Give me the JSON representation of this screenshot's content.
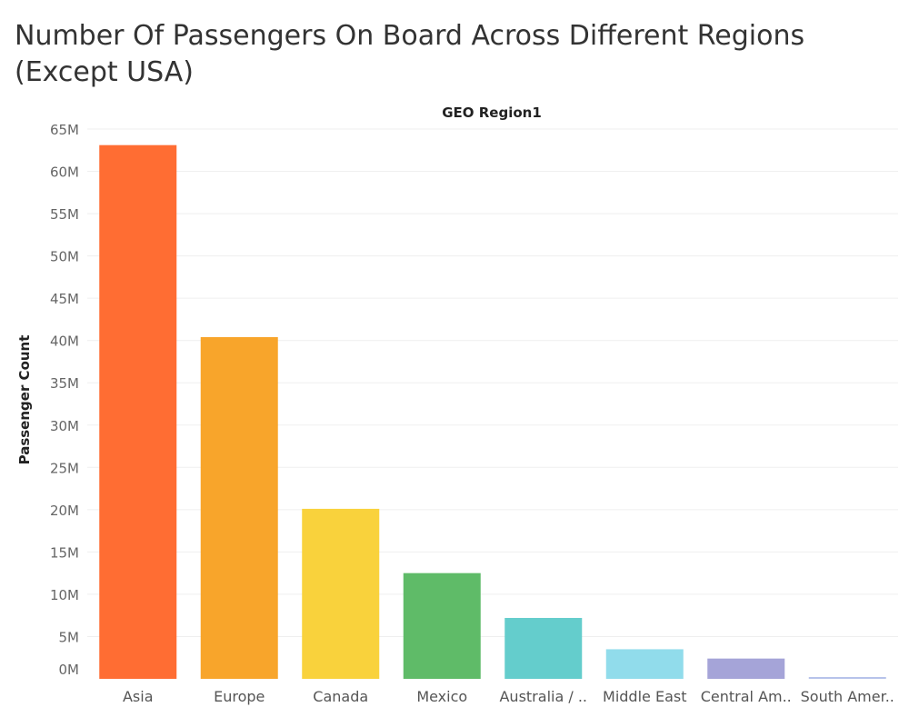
{
  "chart_data": {
    "type": "bar",
    "title": "Number Of Passengers On Board Across Different Regions (Except USA)",
    "column_header": "GEO Region1",
    "ylabel": "Passenger Count",
    "xlabel": "",
    "ylim": [
      0,
      65000000
    ],
    "yticks": [
      {
        "value": 0,
        "label": "0M"
      },
      {
        "value": 5000000,
        "label": "5M"
      },
      {
        "value": 10000000,
        "label": "10M"
      },
      {
        "value": 15000000,
        "label": "15M"
      },
      {
        "value": 20000000,
        "label": "20M"
      },
      {
        "value": 25000000,
        "label": "25M"
      },
      {
        "value": 30000000,
        "label": "30M"
      },
      {
        "value": 35000000,
        "label": "35M"
      },
      {
        "value": 40000000,
        "label": "40M"
      },
      {
        "value": 45000000,
        "label": "45M"
      },
      {
        "value": 50000000,
        "label": "50M"
      },
      {
        "value": 55000000,
        "label": "55M"
      },
      {
        "value": 60000000,
        "label": "60M"
      },
      {
        "value": 65000000,
        "label": "65M"
      }
    ],
    "categories": [
      "Asia",
      "Europe",
      "Canada",
      "Mexico",
      "Australia / ..",
      "Middle East",
      "Central Am..",
      "South Amer.."
    ],
    "values": [
      63100000,
      40400000,
      20100000,
      12500000,
      7200000,
      3500000,
      2400000,
      200000
    ],
    "colors": [
      "#ff6d33",
      "#f8a52b",
      "#f9d23c",
      "#5fbb68",
      "#64cdcc",
      "#91dceb",
      "#a5a4d8",
      "#b7c3ea"
    ],
    "grid": true,
    "legend": "none"
  }
}
